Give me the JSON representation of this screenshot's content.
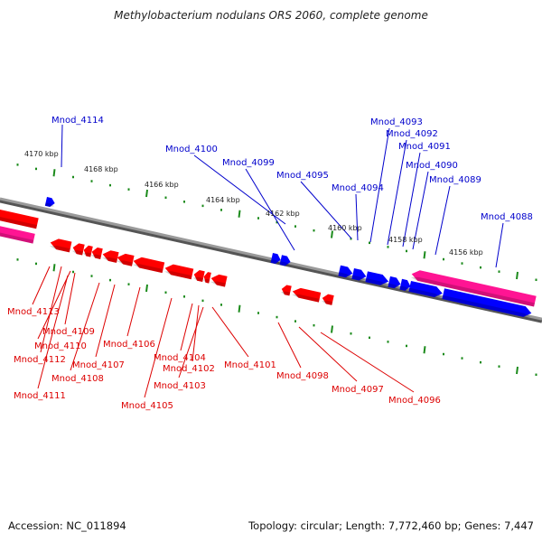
{
  "title": "Methylobacterium nodulans ORS 2060, complete genome",
  "footer": {
    "accession": "Accession: NC_011894",
    "summary": "Topology: circular; Length: 7,772,460 bp; Genes: 7,447"
  },
  "colors": {
    "forward_gene": "#0000ff",
    "reverse_gene": "#ff0000",
    "feature_band": "#ff1493",
    "tick": "#1a8a1a",
    "backbone": "#808080",
    "forward_label": "#0000cc",
    "reverse_label": "#dd0000"
  },
  "scale_ticks": [
    {
      "kbp": 4170,
      "label": "4170 kbp"
    },
    {
      "kbp": 4168,
      "label": "4168 kbp"
    },
    {
      "kbp": 4166,
      "label": "4166 kbp"
    },
    {
      "kbp": 4164,
      "label": "4164 kbp"
    },
    {
      "kbp": 4162,
      "label": "4162 kbp"
    },
    {
      "kbp": 4160,
      "label": "4160 kbp"
    },
    {
      "kbp": 4158,
      "label": "4158 kbp"
    },
    {
      "kbp": 4156,
      "label": "4156 kbp"
    }
  ],
  "forward_labels": [
    "Mnod_4114",
    "Mnod_4100",
    "Mnod_4099",
    "Mnod_4095",
    "Mnod_4094",
    "Mnod_4093",
    "Mnod_4092",
    "Mnod_4091",
    "Mnod_4090",
    "Mnod_4089",
    "Mnod_4088"
  ],
  "reverse_labels": [
    "Mnod_4113",
    "Mnod_4109",
    "Mnod_4110",
    "Mnod_4112",
    "Mnod_4111",
    "Mnod_4108",
    "Mnod_4107",
    "Mnod_4106",
    "Mnod_4105",
    "Mnod_4104",
    "Mnod_4102",
    "Mnod_4103",
    "Mnod_4101",
    "Mnod_4098",
    "Mnod_4097",
    "Mnod_4096"
  ]
}
